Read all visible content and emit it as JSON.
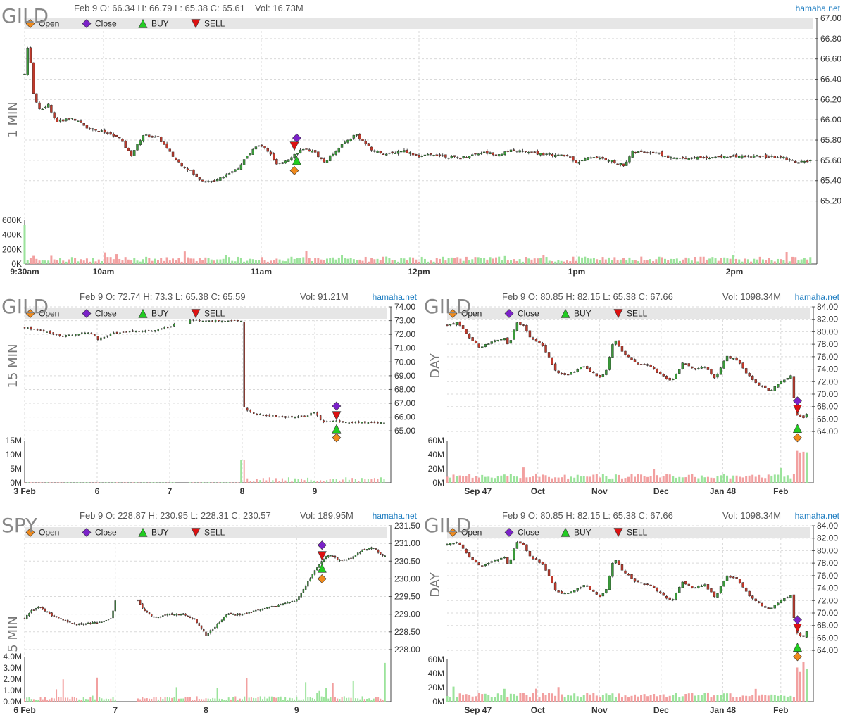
{
  "chart_data": [
    {
      "type": "candlestick",
      "symbol": "GILD",
      "timeframe": "1 MIN",
      "header": {
        "date": "Feb 9",
        "open": "O: 66.34",
        "high": "H: 66.79",
        "low": "L: 65.38",
        "close": "C: 65.61",
        "volume": "Vol: 16.73M"
      },
      "brand": "hamaha.net",
      "legend": [
        "Open",
        "Close",
        "BUY",
        "SELL"
      ],
      "price_ticks": [
        "67.00",
        "66.80",
        "66.60",
        "66.40",
        "66.20",
        "66.00",
        "65.80",
        "65.60",
        "65.40",
        "65.20"
      ],
      "price_range": [
        65.1,
        67.0
      ],
      "volume_ticks": [
        "600K",
        "400K",
        "200K",
        "0K"
      ],
      "volume_range": [
        0,
        600
      ],
      "x_labels": [
        "9:30am",
        "10am",
        "11am",
        "12pm",
        "1pm",
        "2pm"
      ],
      "x_label_positions": [
        0.0,
        0.1,
        0.3,
        0.5,
        0.7,
        0.9
      ],
      "price_path": [
        [
          0.0,
          66.45
        ],
        [
          0.005,
          66.78
        ],
        [
          0.012,
          66.2
        ],
        [
          0.02,
          66.1
        ],
        [
          0.03,
          66.15
        ],
        [
          0.04,
          65.98
        ],
        [
          0.06,
          66.02
        ],
        [
          0.08,
          65.92
        ],
        [
          0.1,
          65.88
        ],
        [
          0.12,
          65.82
        ],
        [
          0.135,
          65.65
        ],
        [
          0.15,
          65.85
        ],
        [
          0.17,
          65.82
        ],
        [
          0.19,
          65.62
        ],
        [
          0.2,
          65.55
        ],
        [
          0.21,
          65.5
        ],
        [
          0.22,
          65.42
        ],
        [
          0.235,
          65.38
        ],
        [
          0.25,
          65.44
        ],
        [
          0.27,
          65.52
        ],
        [
          0.29,
          65.72
        ],
        [
          0.3,
          65.75
        ],
        [
          0.31,
          65.68
        ],
        [
          0.32,
          65.55
        ],
        [
          0.335,
          65.62
        ],
        [
          0.35,
          65.7
        ],
        [
          0.365,
          65.7
        ],
        [
          0.38,
          65.58
        ],
        [
          0.4,
          65.74
        ],
        [
          0.42,
          65.86
        ],
        [
          0.44,
          65.7
        ],
        [
          0.46,
          65.66
        ],
        [
          0.48,
          65.7
        ],
        [
          0.5,
          65.64
        ],
        [
          0.52,
          65.66
        ],
        [
          0.55,
          65.62
        ],
        [
          0.58,
          65.68
        ],
        [
          0.6,
          65.66
        ],
        [
          0.62,
          65.7
        ],
        [
          0.66,
          65.66
        ],
        [
          0.69,
          65.64
        ],
        [
          0.7,
          65.58
        ],
        [
          0.72,
          65.64
        ],
        [
          0.74,
          65.6
        ],
        [
          0.76,
          65.55
        ],
        [
          0.77,
          65.68
        ],
        [
          0.8,
          65.68
        ],
        [
          0.82,
          65.62
        ],
        [
          0.86,
          65.63
        ],
        [
          0.9,
          65.64
        ],
        [
          0.93,
          65.64
        ],
        [
          0.96,
          65.63
        ],
        [
          0.98,
          65.58
        ],
        [
          1.0,
          65.6
        ]
      ],
      "volumes": "spiky",
      "markers": [
        {
          "kind": "Close",
          "x": 0.345,
          "price": 65.82
        },
        {
          "kind": "SELL",
          "x": 0.342,
          "price": 65.74
        },
        {
          "kind": "BUY",
          "x": 0.345,
          "price": 65.6
        },
        {
          "kind": "Open",
          "x": 0.342,
          "price": 65.5
        }
      ]
    },
    {
      "type": "candlestick",
      "symbol": "GILD",
      "timeframe": "15 MIN",
      "header": {
        "date": "Feb 9",
        "open": "O: 72.74",
        "high": "H: 73.3",
        "low": "L: 65.38",
        "close": "C: 65.59",
        "volume": "Vol: 91.21M"
      },
      "brand": "hamaha.net",
      "legend": [
        "Open",
        "Close",
        "BUY",
        "SELL"
      ],
      "price_ticks": [
        "74.00",
        "73.00",
        "72.00",
        "71.00",
        "70.00",
        "69.00",
        "68.00",
        "67.00",
        "66.00",
        "65.00"
      ],
      "price_range": [
        64.5,
        74.0
      ],
      "volume_ticks": [
        "15M",
        "10M",
        "5M",
        "0M"
      ],
      "volume_range": [
        0,
        15
      ],
      "x_labels": [
        "3 Feb",
        "6",
        "7",
        "8",
        "9"
      ],
      "x_label_positions": [
        0.0,
        0.2,
        0.4,
        0.6,
        0.8
      ],
      "price_path": [
        [
          0.0,
          72.5
        ],
        [
          0.03,
          72.35
        ],
        [
          0.06,
          72.2
        ],
        [
          0.1,
          71.85
        ],
        [
          0.14,
          72.0
        ],
        [
          0.18,
          72.2
        ],
        [
          0.2,
          71.6
        ],
        [
          0.24,
          72.1
        ],
        [
          0.3,
          72.2
        ],
        [
          0.36,
          72.3
        ],
        [
          0.4,
          72.6
        ],
        [
          0.45,
          73.05
        ],
        [
          0.5,
          73.0
        ],
        [
          0.55,
          73.0
        ],
        [
          0.6,
          73.0
        ],
        [
          0.6,
          66.8
        ],
        [
          0.63,
          66.2
        ],
        [
          0.68,
          66.1
        ],
        [
          0.72,
          65.95
        ],
        [
          0.77,
          66.05
        ],
        [
          0.8,
          66.35
        ],
        [
          0.82,
          65.6
        ],
        [
          0.86,
          65.7
        ],
        [
          0.9,
          65.6
        ],
        [
          0.95,
          65.6
        ],
        [
          1.0,
          65.55
        ]
      ],
      "price_gaps": [
        0.415,
        0.455,
        0.595
      ],
      "volumes": "flat-then-burst",
      "markers": [
        {
          "kind": "Close",
          "x": 0.86,
          "price": 66.8
        },
        {
          "kind": "SELL",
          "x": 0.86,
          "price": 66.1
        },
        {
          "kind": "BUY",
          "x": 0.86,
          "price": 65.15
        },
        {
          "kind": "Open",
          "x": 0.86,
          "price": 64.5
        }
      ]
    },
    {
      "type": "candlestick",
      "symbol": "GILD",
      "timeframe": "DAY",
      "header": {
        "date": "Feb 9",
        "open": "O: 80.85",
        "high": "H: 82.15",
        "low": "L: 65.38",
        "close": "C: 67.66",
        "volume": "Vol: 1098.34M"
      },
      "brand": "hamaha.net",
      "legend": [
        "Open",
        "Close",
        "BUY",
        "SELL"
      ],
      "price_ticks": [
        "84.00",
        "82.00",
        "80.00",
        "78.00",
        "76.00",
        "74.00",
        "72.00",
        "70.00",
        "68.00",
        "66.00",
        "64.00"
      ],
      "price_range": [
        63,
        84
      ],
      "volume_ticks": [
        "60M",
        "40M",
        "20M",
        "0M"
      ],
      "volume_range": [
        0,
        60
      ],
      "x_labels": [
        "Sep 47",
        "Oct",
        "Nov",
        "Dec",
        "Jan 48",
        "Feb"
      ],
      "x_label_positions": [
        0.085,
        0.25,
        0.42,
        0.59,
        0.76,
        0.92
      ],
      "price_path": [
        [
          0.0,
          81.0
        ],
        [
          0.03,
          81.5
        ],
        [
          0.06,
          79.0
        ],
        [
          0.09,
          77.5
        ],
        [
          0.13,
          78.5
        ],
        [
          0.16,
          79.0
        ],
        [
          0.17,
          77.5
        ],
        [
          0.19,
          81.5
        ],
        [
          0.21,
          81.0
        ],
        [
          0.23,
          79.0
        ],
        [
          0.26,
          78.0
        ],
        [
          0.28,
          76.0
        ],
        [
          0.3,
          73.5
        ],
        [
          0.33,
          73.0
        ],
        [
          0.36,
          74.0
        ],
        [
          0.38,
          74.5
        ],
        [
          0.4,
          73.5
        ],
        [
          0.42,
          72.5
        ],
        [
          0.44,
          74.0
        ],
        [
          0.46,
          79.0
        ],
        [
          0.48,
          77.0
        ],
        [
          0.52,
          75.0
        ],
        [
          0.56,
          74.5
        ],
        [
          0.59,
          73.0
        ],
        [
          0.62,
          72.0
        ],
        [
          0.65,
          75.0
        ],
        [
          0.68,
          74.0
        ],
        [
          0.71,
          74.5
        ],
        [
          0.74,
          72.5
        ],
        [
          0.77,
          76.0
        ],
        [
          0.8,
          75.5
        ],
        [
          0.83,
          73.0
        ],
        [
          0.86,
          71.5
        ],
        [
          0.89,
          70.5
        ],
        [
          0.92,
          72.0
        ],
        [
          0.95,
          73.0
        ],
        [
          0.96,
          67.0
        ],
        [
          0.98,
          66.0
        ],
        [
          1.0,
          67.6
        ]
      ],
      "volumes": "daily",
      "markers": [
        {
          "kind": "Close",
          "x": 0.966,
          "price": 68.9
        },
        {
          "kind": "SELL",
          "x": 0.966,
          "price": 67.6
        },
        {
          "kind": "BUY",
          "x": 0.966,
          "price": 64.5
        },
        {
          "kind": "Open",
          "x": 0.966,
          "price": 63.0
        }
      ]
    },
    {
      "type": "candlestick",
      "symbol": "SPY",
      "timeframe": "5 MIN",
      "header": {
        "date": "Feb 9",
        "open": "O: 228.87",
        "high": "H: 230.95",
        "low": "L: 228.31",
        "close": "C: 230.57",
        "volume": "Vol: 189.95M"
      },
      "brand": "hamaha.net",
      "legend": [
        "Open",
        "Close",
        "BUY",
        "SELL"
      ],
      "price_ticks": [
        "231.50",
        "231.00",
        "230.50",
        "230.00",
        "229.50",
        "229.00",
        "228.50",
        "228.00"
      ],
      "price_range": [
        227.8,
        231.5
      ],
      "volume_ticks": [
        "4.0M",
        "3.0M",
        "2.0M",
        "1.0M",
        "0.0M"
      ],
      "volume_range": [
        0,
        4
      ],
      "x_labels": [
        "6 Feb",
        "7",
        "8",
        "9"
      ],
      "x_label_positions": [
        0.0,
        0.25,
        0.5,
        0.75
      ],
      "price_path": [
        [
          0.0,
          228.9
        ],
        [
          0.02,
          229.1
        ],
        [
          0.04,
          229.2
        ],
        [
          0.07,
          229.0
        ],
        [
          0.1,
          228.85
        ],
        [
          0.14,
          228.7
        ],
        [
          0.18,
          228.75
        ],
        [
          0.22,
          228.8
        ],
        [
          0.24,
          228.9
        ],
        [
          0.25,
          229.4
        ],
        [
          0.27,
          229.5
        ],
        [
          0.31,
          229.4
        ],
        [
          0.33,
          229.1
        ],
        [
          0.36,
          228.9
        ],
        [
          0.4,
          229.0
        ],
        [
          0.44,
          229.0
        ],
        [
          0.47,
          228.85
        ],
        [
          0.5,
          228.4
        ],
        [
          0.53,
          228.7
        ],
        [
          0.56,
          229.0
        ],
        [
          0.6,
          229.0
        ],
        [
          0.64,
          229.1
        ],
        [
          0.68,
          229.2
        ],
        [
          0.72,
          229.3
        ],
        [
          0.75,
          229.4
        ],
        [
          0.78,
          229.9
        ],
        [
          0.81,
          230.4
        ],
        [
          0.84,
          230.7
        ],
        [
          0.87,
          230.5
        ],
        [
          0.9,
          230.6
        ],
        [
          0.93,
          230.8
        ],
        [
          0.96,
          230.9
        ],
        [
          0.98,
          230.7
        ],
        [
          1.0,
          230.6
        ]
      ],
      "price_gaps": [
        0.25,
        0.31
      ],
      "volumes": "sparse-spikes",
      "markers": [
        {
          "kind": "Close",
          "x": 0.82,
          "price": 230.95
        },
        {
          "kind": "SELL",
          "x": 0.82,
          "price": 230.65
        },
        {
          "kind": "BUY",
          "x": 0.82,
          "price": 230.3
        },
        {
          "kind": "Open",
          "x": 0.82,
          "price": 230.0
        }
      ]
    },
    {
      "type": "candlestick",
      "symbol": "GILD",
      "timeframe": "DAY",
      "header": {
        "date": "Feb 9",
        "open": "O: 80.85",
        "high": "H: 82.15",
        "low": "L: 65.38",
        "close": "C: 67.66",
        "volume": "Vol: 1098.34M"
      },
      "brand": "hamaha.net",
      "legend": [
        "Open",
        "Close",
        "BUY",
        "SELL"
      ],
      "price_ticks": [
        "84.00",
        "82.00",
        "80.00",
        "78.00",
        "76.00",
        "74.00",
        "72.00",
        "70.00",
        "68.00",
        "66.00",
        "64.00"
      ],
      "price_range": [
        63,
        84
      ],
      "volume_ticks": [
        "60M",
        "40M",
        "20M",
        "0M"
      ],
      "volume_range": [
        0,
        60
      ],
      "x_labels": [
        "Sep 47",
        "Oct",
        "Nov",
        "Dec",
        "Jan 48",
        "Feb"
      ],
      "x_label_positions": [
        0.085,
        0.25,
        0.42,
        0.59,
        0.76,
        0.92
      ],
      "price_path": [
        [
          0.0,
          81.0
        ],
        [
          0.03,
          81.5
        ],
        [
          0.06,
          79.0
        ],
        [
          0.09,
          77.5
        ],
        [
          0.13,
          78.5
        ],
        [
          0.16,
          79.0
        ],
        [
          0.17,
          77.5
        ],
        [
          0.19,
          81.5
        ],
        [
          0.21,
          81.0
        ],
        [
          0.23,
          79.0
        ],
        [
          0.26,
          78.0
        ],
        [
          0.28,
          76.0
        ],
        [
          0.3,
          73.5
        ],
        [
          0.33,
          73.0
        ],
        [
          0.36,
          74.0
        ],
        [
          0.38,
          74.5
        ],
        [
          0.4,
          73.5
        ],
        [
          0.42,
          72.5
        ],
        [
          0.44,
          74.0
        ],
        [
          0.46,
          79.0
        ],
        [
          0.48,
          77.0
        ],
        [
          0.52,
          75.0
        ],
        [
          0.56,
          74.5
        ],
        [
          0.59,
          73.0
        ],
        [
          0.62,
          72.0
        ],
        [
          0.65,
          75.0
        ],
        [
          0.68,
          74.0
        ],
        [
          0.71,
          74.5
        ],
        [
          0.74,
          72.5
        ],
        [
          0.77,
          76.0
        ],
        [
          0.8,
          75.5
        ],
        [
          0.83,
          73.0
        ],
        [
          0.86,
          71.5
        ],
        [
          0.89,
          70.5
        ],
        [
          0.92,
          72.0
        ],
        [
          0.95,
          73.0
        ],
        [
          0.96,
          67.0
        ],
        [
          0.98,
          66.0
        ],
        [
          1.0,
          67.6
        ]
      ],
      "volumes": "daily",
      "markers": [
        {
          "kind": "Close",
          "x": 0.966,
          "price": 68.9
        },
        {
          "kind": "SELL",
          "x": 0.966,
          "price": 67.6
        },
        {
          "kind": "BUY",
          "x": 0.966,
          "price": 64.5
        },
        {
          "kind": "Open",
          "x": 0.966,
          "price": 63.0
        }
      ]
    }
  ],
  "colors": {
    "up": "#3a9a3a",
    "down": "#c0392b",
    "vol_up": "#9be39b",
    "vol_down": "#f2a0a0",
    "grid": "#d9d9d9",
    "legend_bar": "#e6e6e6",
    "marker_open": "#f08a1c",
    "marker_close": "#7b22c9",
    "marker_buy": "#22cc22",
    "marker_sell": "#dd1111"
  }
}
